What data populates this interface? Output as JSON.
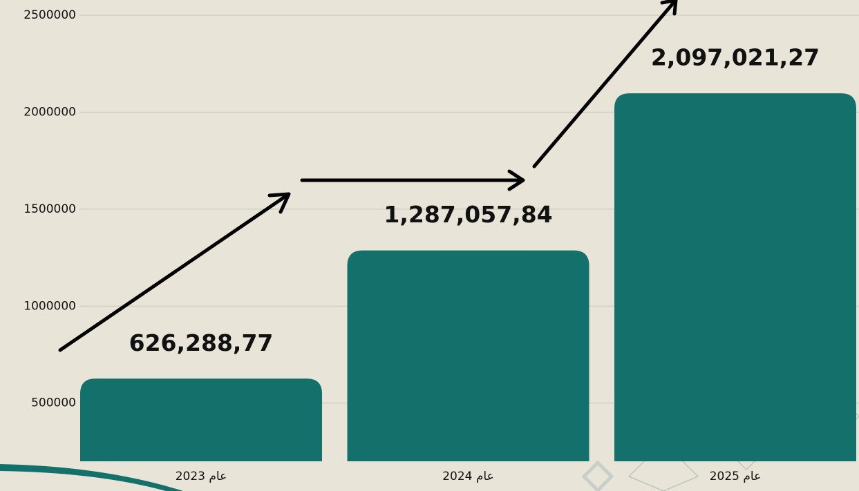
{
  "chart_data": {
    "type": "bar",
    "categories": [
      "عام 2023",
      "عام 2024",
      "عام 2025"
    ],
    "values": [
      626288.77,
      1287057.84,
      2097021.27
    ],
    "value_labels": [
      "626,288,77",
      "1,287,057,84",
      "2,097,021,27"
    ],
    "color": "#13706a",
    "ylim": [
      200000,
      2500000
    ],
    "yticks": [
      500000,
      1000000,
      1500000,
      2000000,
      2500000
    ],
    "grid": true
  }
}
